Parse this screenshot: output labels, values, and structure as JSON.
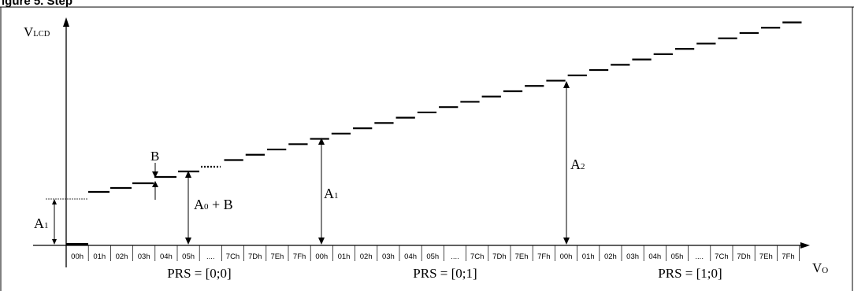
{
  "title": "igure 5. Step",
  "y_axis_label": {
    "main": "V",
    "sub": "LCD"
  },
  "x_axis_label": {
    "main": "V",
    "sub": "O"
  },
  "annotations": {
    "b": "B",
    "a1_left": {
      "main": "A",
      "sub": "1"
    },
    "a0_plus_b": {
      "main": "A",
      "sub": "0",
      "rest": " + B"
    },
    "a1_mid": {
      "main": "A",
      "sub": "1"
    },
    "a2": {
      "main": "A",
      "sub": "2"
    }
  },
  "tick_labels": [
    "00h",
    "01h",
    "02h",
    "03h",
    "04h",
    "05h",
    "....",
    "7Ch",
    "7Dh",
    "7Eh",
    "7Fh",
    "00h",
    "01h",
    "02h",
    "03h",
    "04h",
    "05h",
    "....",
    "7Ch",
    "7Dh",
    "7Eh",
    "7Fh",
    "00h",
    "01h",
    "02h",
    "03h",
    "04h",
    "05h",
    "....",
    "7Ch",
    "7Dh",
    "7Eh",
    "7Fh"
  ],
  "groups": [
    "PRS = [0;0]",
    "PRS = [0;1]",
    "PRS = [1;0]"
  ],
  "colors": {
    "ink": "#000000",
    "background": "#ffffff"
  }
}
